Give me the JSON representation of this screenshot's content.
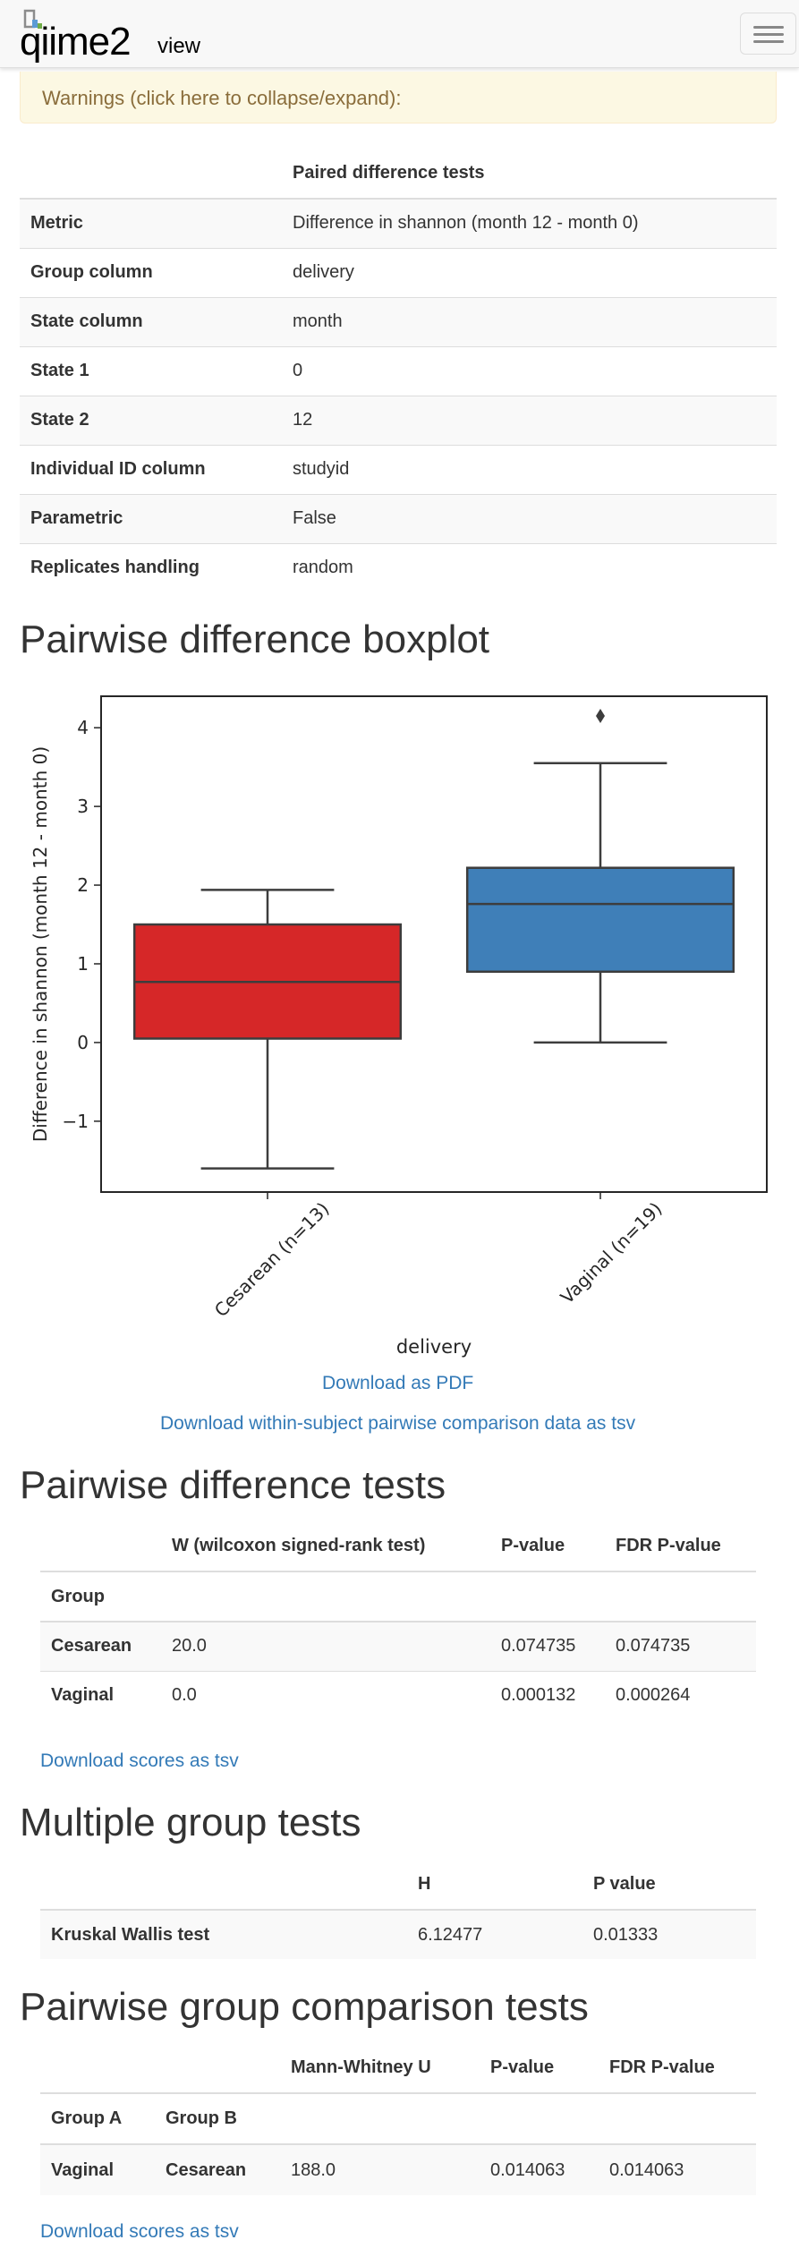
{
  "navbar": {
    "logo_q": "qiime",
    "logo_2": "2",
    "logo_view": "view",
    "menu_icon": "hamburger-menu-icon"
  },
  "warning": {
    "text": "Warnings (click here to collapse/expand):"
  },
  "params": {
    "header": "Paired difference tests",
    "rows": [
      {
        "key": "Metric",
        "value": "Difference in shannon (month 12 - month 0)"
      },
      {
        "key": "Group column",
        "value": "delivery"
      },
      {
        "key": "State column",
        "value": "month"
      },
      {
        "key": "State 1",
        "value": "0"
      },
      {
        "key": "State 2",
        "value": "12"
      },
      {
        "key": "Individual ID column",
        "value": "studyid"
      },
      {
        "key": "Parametric",
        "value": "False"
      },
      {
        "key": "Replicates handling",
        "value": "random"
      }
    ]
  },
  "boxplot": {
    "title": "Pairwise difference boxplot",
    "download_pdf": "Download as PDF",
    "download_tsv": "Download within-subject pairwise comparison data as tsv"
  },
  "chart_data": {
    "type": "box",
    "xlabel": "delivery",
    "ylabel": "Difference in shannon (month 12 - month 0)",
    "ylim": [
      -1.9,
      4.4
    ],
    "yticks": [
      -1,
      0,
      1,
      2,
      3,
      4
    ],
    "ytick_labels": [
      "−1",
      "0",
      "1",
      "2",
      "3",
      "4"
    ],
    "categories": [
      "Cesarean (n=13)",
      "Vaginal (n=19)"
    ],
    "boxes": [
      {
        "name": "Cesarean (n=13)",
        "whislo": -1.6,
        "q1": 0.05,
        "med": 0.77,
        "q3": 1.5,
        "whishi": 1.94,
        "fliers": [],
        "color": "#d62728"
      },
      {
        "name": "Vaginal (n=19)",
        "whislo": 0.0,
        "q1": 0.9,
        "med": 1.76,
        "q3": 2.22,
        "whishi": 3.55,
        "fliers": [
          4.15
        ],
        "color": "#3f7fb8"
      }
    ]
  },
  "pairwise_diff": {
    "title": "Pairwise difference tests",
    "columns": [
      "W (wilcoxon signed-rank test)",
      "P-value",
      "FDR P-value"
    ],
    "index_name": "Group",
    "rows": [
      {
        "group": "Cesarean",
        "w": "20.0",
        "p": "0.074735",
        "fdr": "0.074735"
      },
      {
        "group": "Vaginal",
        "w": "0.0",
        "p": "0.000132",
        "fdr": "0.000264"
      }
    ],
    "download": "Download scores as tsv"
  },
  "multiple_group": {
    "title": "Multiple group tests",
    "columns": [
      "H",
      "P value"
    ],
    "rows": [
      {
        "name": "Kruskal Wallis test",
        "h": "6.12477",
        "p": "0.01333"
      }
    ]
  },
  "pairwise_group": {
    "title": "Pairwise group comparison tests",
    "columns": [
      "Mann-Whitney U",
      "P-value",
      "FDR P-value"
    ],
    "index_names": [
      "Group A",
      "Group B"
    ],
    "rows": [
      {
        "a": "Vaginal",
        "b": "Cesarean",
        "u": "188.0",
        "p": "0.014063",
        "fdr": "0.014063"
      }
    ],
    "download": "Download scores as tsv"
  }
}
